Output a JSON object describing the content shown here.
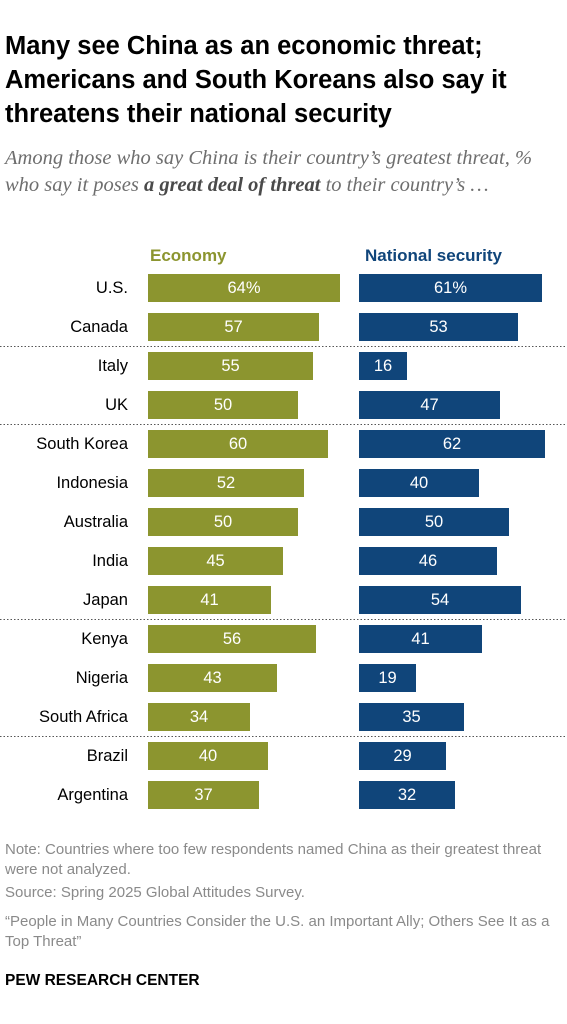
{
  "title": "Many see China as an economic threat; Americans and South Koreans also say it threatens their national security",
  "subtitle": {
    "before": "Among those who say China is their country’s greatest threat, % who say it poses ",
    "emphasis": "a great deal of threat",
    "after": " to their country’s …"
  },
  "colors": {
    "economy": "#8c952f",
    "national_security": "#10457a"
  },
  "chart_data": {
    "type": "bar",
    "orientation": "horizontal",
    "categories": [
      "U.S.",
      "Canada",
      "Italy",
      "UK",
      "South Korea",
      "Indonesia",
      "Australia",
      "India",
      "Japan",
      "Kenya",
      "Nigeria",
      "South Africa",
      "Brazil",
      "Argentina"
    ],
    "series": [
      {
        "name": "Economy",
        "values": [
          64,
          57,
          55,
          50,
          60,
          52,
          50,
          45,
          41,
          56,
          43,
          34,
          40,
          37
        ],
        "color": "#8c952f"
      },
      {
        "name": "National security",
        "values": [
          61,
          53,
          16,
          47,
          62,
          40,
          50,
          46,
          54,
          41,
          19,
          35,
          29,
          32
        ],
        "color": "#10457a"
      }
    ],
    "value_labels": [
      "64%",
      "57",
      "55",
      "50",
      "60",
      "52",
      "50",
      "45",
      "41",
      "56",
      "43",
      "34",
      "40",
      "37"
    ],
    "value_labels_national_security": [
      "61%",
      "53",
      "16",
      "47",
      "62",
      "40",
      "50",
      "46",
      "54",
      "41",
      "19",
      "35",
      "29",
      "32"
    ],
    "group_separators_after": [
      "Canada",
      "UK",
      "Japan",
      "South Africa"
    ],
    "xlim": [
      0,
      100
    ],
    "grid": false,
    "legend": "column headers above bars"
  },
  "notes": {
    "note": "Note: Countries where too few respondents named China as their greatest threat were not analyzed.",
    "source": "Source: Spring 2025 Global Attitudes Survey.",
    "report": "“People in Many Countries Consider the U.S. an Important Ally; Others See It as a Top Threat”"
  },
  "footer": "PEW RESEARCH CENTER"
}
